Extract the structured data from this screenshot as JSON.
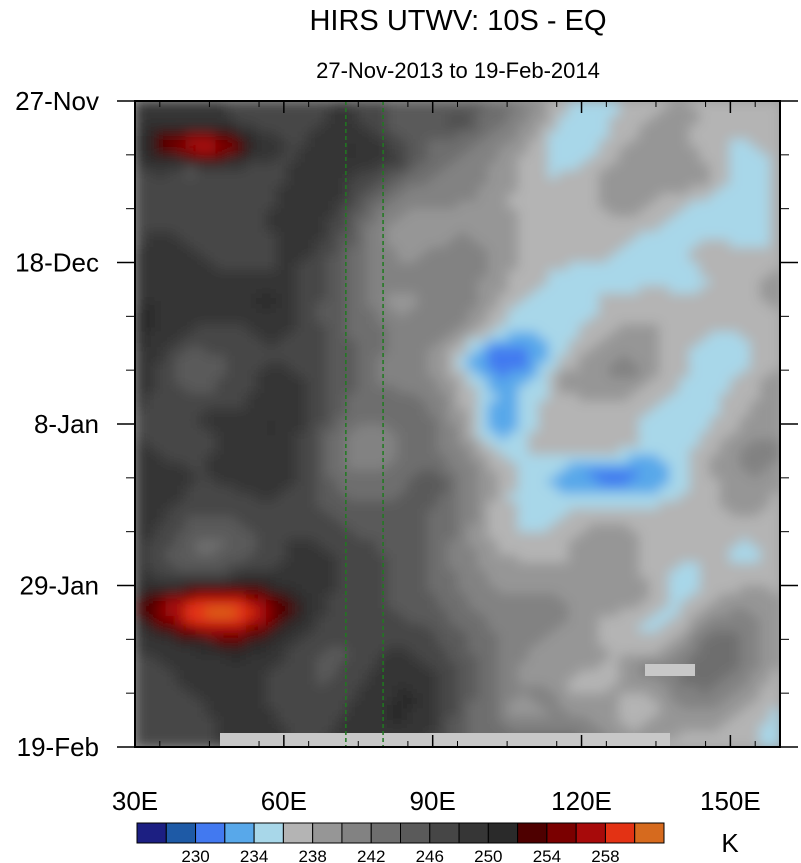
{
  "chart_data": {
    "type": "heatmap",
    "title": "HIRS UTWV: 10S - EQ",
    "subtitle": "27-Nov-2013 to 19-Feb-2014",
    "x_ticks": [
      {
        "value": 30,
        "label": "30E"
      },
      {
        "value": 60,
        "label": "60E"
      },
      {
        "value": 90,
        "label": "90E"
      },
      {
        "value": 120,
        "label": "120E"
      },
      {
        "value": 150,
        "label": "150E"
      }
    ],
    "y_ticks": [
      {
        "value": 0,
        "label": "27-Nov"
      },
      {
        "value": 21,
        "label": "18-Dec"
      },
      {
        "value": 42,
        "label": "8-Jan"
      },
      {
        "value": 63,
        "label": "29-Jan"
      },
      {
        "value": 84,
        "label": "19-Feb"
      }
    ],
    "xlim": [
      30,
      160
    ],
    "ylim": [
      0,
      84
    ],
    "reference_lines_x": [
      72.5,
      80
    ],
    "colorbar": {
      "unit": "K",
      "levels": [
        228,
        230,
        232,
        234,
        236,
        238,
        240,
        242,
        244,
        246,
        248,
        250,
        252,
        254,
        256,
        258,
        260
      ],
      "labels": [
        "230",
        "234",
        "238",
        "242",
        "246",
        "250",
        "254",
        "258"
      ],
      "colors": [
        "#1c1f82",
        "#1e5aa6",
        "#4279f0",
        "#58a8ea",
        "#a8d7e9",
        "#b4b4b4",
        "#969696",
        "#828282",
        "#6e6e6e",
        "#5a5a5a",
        "#464646",
        "#363636",
        "#2a2a2a",
        "#4e0000",
        "#7a0000",
        "#a70a0a",
        "#e33214",
        "#d66a1e"
      ]
    }
  }
}
